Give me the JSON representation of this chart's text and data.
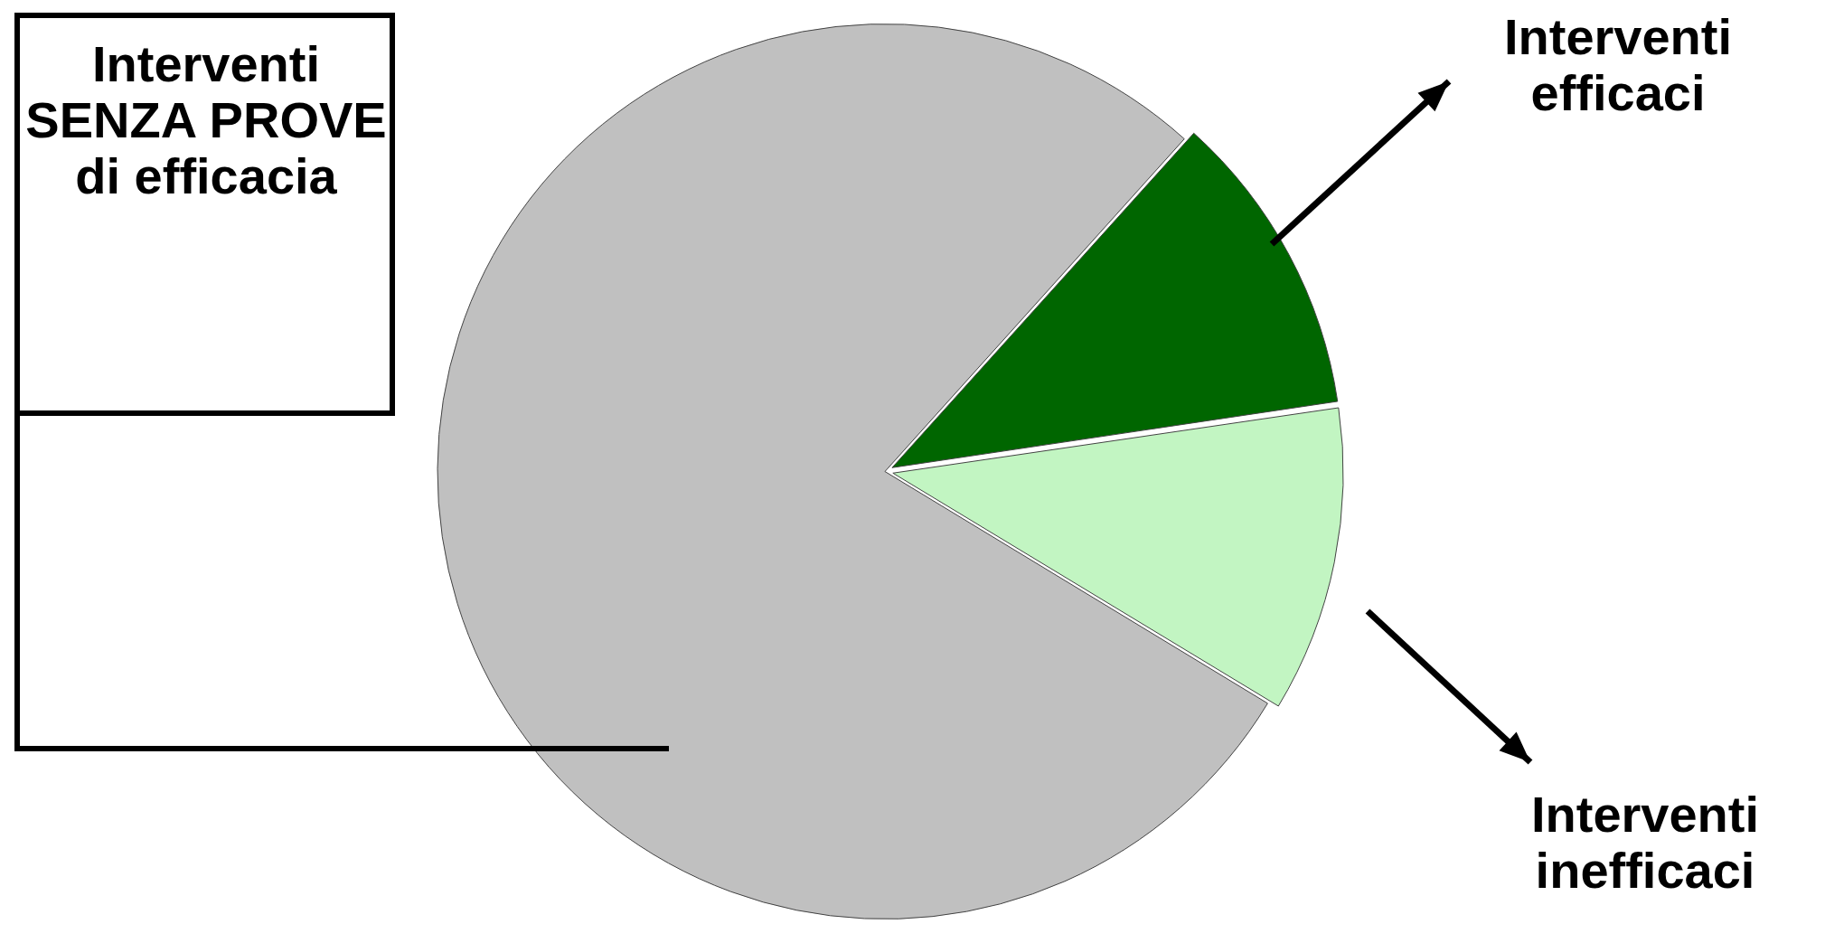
{
  "chart_data": {
    "type": "pie",
    "categories": [
      "Interventi efficaci",
      "Interventi inefficaci",
      "Interventi SENZA PROVE di efficacia"
    ],
    "values": [
      11,
      11,
      78
    ],
    "colors": [
      "#006600",
      "#c2f5c2",
      "#c0c0c0"
    ],
    "legend": false
  }
}
